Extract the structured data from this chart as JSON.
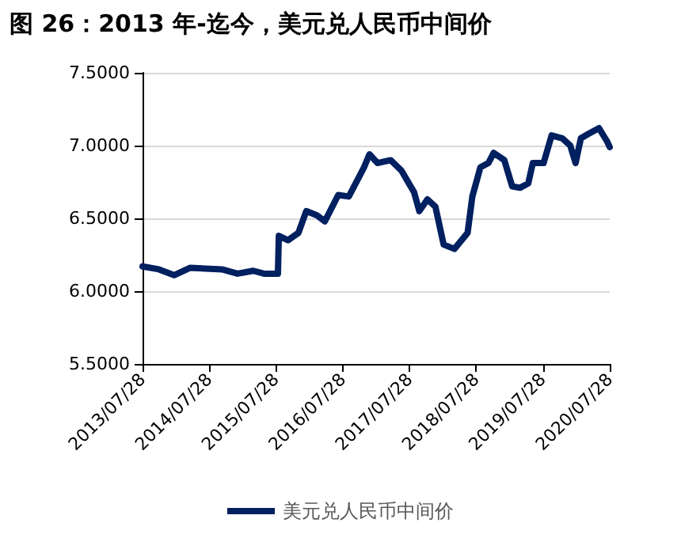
{
  "chart_data": {
    "type": "line",
    "title": "图 26：2013 年-迄今，美元兑人民币中间价",
    "x": [
      "2013-07-28",
      "2013-10-25",
      "2014-01-17",
      "2014-04-13",
      "2014-10-05",
      "2014-12-30",
      "2015-03-26",
      "2015-05-24",
      "2015-08-08",
      "2015-08-13",
      "2015-10-02",
      "2015-11-28",
      "2016-01-10",
      "2016-03-09",
      "2016-04-21",
      "2016-07-03",
      "2016-08-30",
      "2016-11-21",
      "2016-12-21",
      "2017-02-03",
      "2017-04-16",
      "2017-06-13",
      "2017-08-22",
      "2017-09-20",
      "2017-11-03",
      "2017-12-17",
      "2018-01-31",
      "2018-03-31",
      "2018-06-11",
      "2018-07-07",
      "2018-08-20",
      "2018-10-03",
      "2018-11-01",
      "2018-12-29",
      "2019-02-10",
      "2019-03-25",
      "2019-05-09",
      "2019-06-03",
      "2019-08-01",
      "2019-09-14",
      "2019-11-11",
      "2019-12-25",
      "2020-01-23",
      "2020-02-21",
      "2020-04-02",
      "2020-05-30",
      "2020-07-13",
      "2020-07-28"
    ],
    "series": [
      {
        "name": "美元兑人民币中间价",
        "color": "#002060",
        "values": [
          6.17,
          6.15,
          6.11,
          6.16,
          6.15,
          6.12,
          6.14,
          6.12,
          6.12,
          6.38,
          6.35,
          6.4,
          6.55,
          6.52,
          6.48,
          6.66,
          6.65,
          6.85,
          6.94,
          6.88,
          6.9,
          6.83,
          6.68,
          6.55,
          6.63,
          6.58,
          6.32,
          6.29,
          6.4,
          6.65,
          6.85,
          6.88,
          6.95,
          6.9,
          6.72,
          6.71,
          6.74,
          6.88,
          6.88,
          7.07,
          7.05,
          7.0,
          6.88,
          7.05,
          7.08,
          7.12,
          7.03,
          6.99
        ]
      }
    ],
    "xlim": [
      "2013-07-28",
      "2020-07-28"
    ],
    "xticks": [
      {
        "value": "2013-07-28",
        "label": "2013/07/28"
      },
      {
        "value": "2014-07-28",
        "label": "2014/07/28"
      },
      {
        "value": "2015-07-28",
        "label": "2015/07/28"
      },
      {
        "value": "2016-07-28",
        "label": "2016/07/28"
      },
      {
        "value": "2017-07-28",
        "label": "2017/07/28"
      },
      {
        "value": "2018-07-28",
        "label": "2018/07/28"
      },
      {
        "value": "2019-07-28",
        "label": "2019/07/28"
      },
      {
        "value": "2020-07-28",
        "label": "2020/07/28"
      }
    ],
    "ylim": [
      5.5,
      7.5
    ],
    "yticks": [
      {
        "value": 5.5,
        "label": "5.5000"
      },
      {
        "value": 6,
        "label": "6.0000"
      },
      {
        "value": 6.5,
        "label": "6.5000"
      },
      {
        "value": 7,
        "label": "7.0000"
      },
      {
        "value": 7.5,
        "label": "7.5000"
      }
    ],
    "grid": "y",
    "legend": "bottom",
    "marker": "none",
    "line_style": "solid"
  }
}
